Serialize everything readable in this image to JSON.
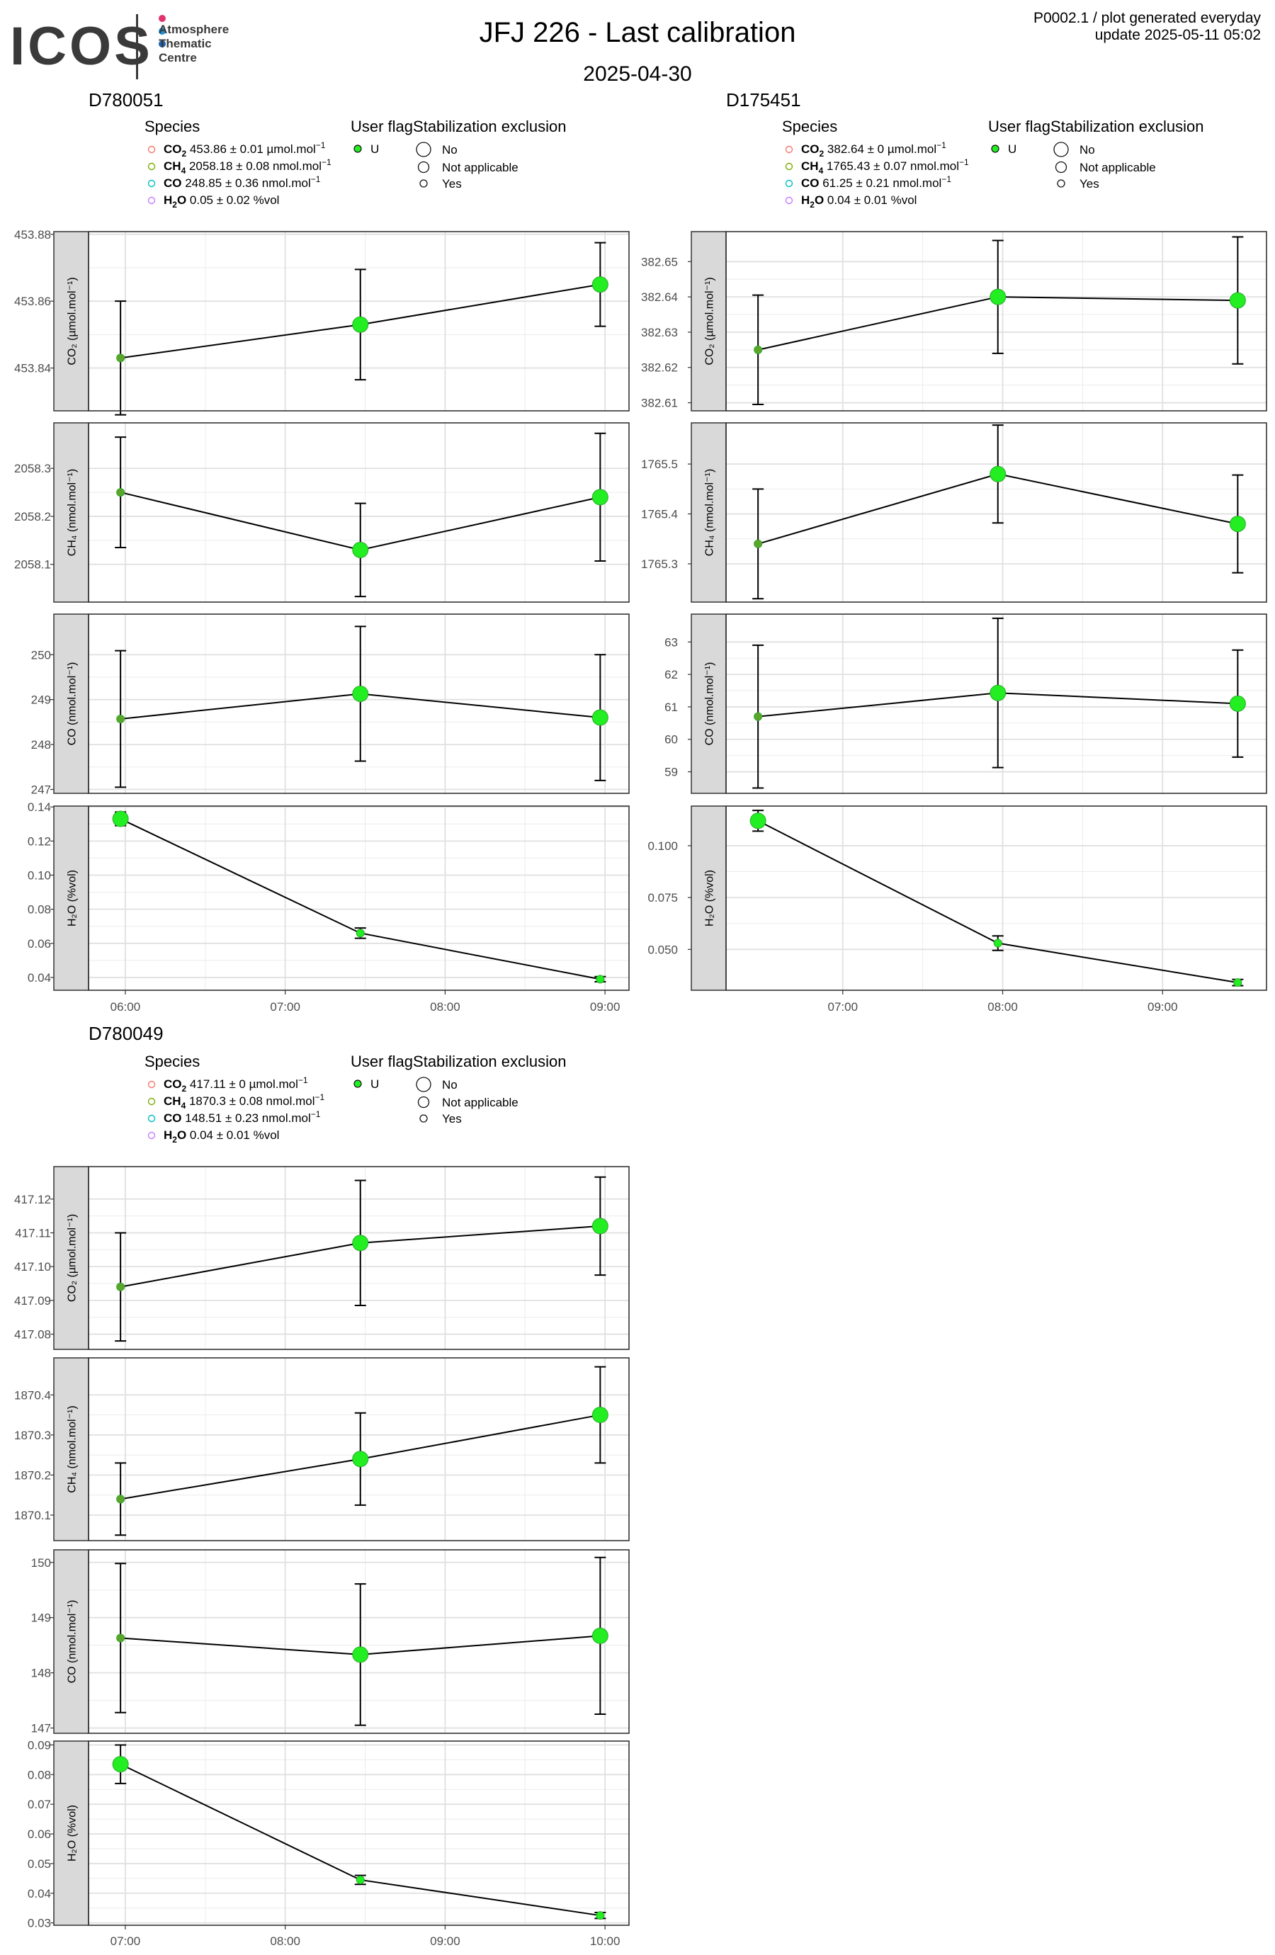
{
  "header": {
    "logo_text": "ICOS",
    "logo_subtitle": "Atmosphere\nThematic\nCentre",
    "logo_dot_colors": [
      "#e0336b",
      "#1a8fd6",
      "#1f5fb0"
    ],
    "title": "JFJ 226 - Last calibration",
    "date": "2025-04-30",
    "meta_line1": "P0002.1 / plot generated everyday",
    "meta_line2": "update  2025-05-11 05:02"
  },
  "legend_labels": {
    "species_title": "Species",
    "user_flag_title": "User flag",
    "stab_title": "Stabilization exclusion",
    "user_flag_value": "U",
    "stab_no": "No",
    "stab_na": "Not applicable",
    "stab_yes": "Yes"
  },
  "colors": {
    "point_fill": "#22ee22",
    "point_stroke": "#2aa82a",
    "early_point": "#5da52a",
    "grid": "#ebebeb",
    "strip": "#d9d9d9",
    "species_co2": "#f8766d",
    "species_ch4": "#7cae00",
    "species_co": "#00bfc4",
    "species_h2o": "#c77cff"
  },
  "chart_data": [
    {
      "type": "line",
      "title": "D780051",
      "x_ticks": [
        "06:00",
        "07:00",
        "08:00",
        "09:00"
      ],
      "x_range_hours": [
        5.77,
        9.15
      ],
      "x": [
        5.97,
        7.47,
        8.97
      ],
      "legend_species": [
        {
          "name": "CO",
          "sub": "2",
          "text": "453.86 ± 0.01 µmol.mol",
          "sup": "−1",
          "color": "#f8766d"
        },
        {
          "name": "CH",
          "sub": "4",
          "text": "2058.18 ± 0.08 nmol.mol",
          "sup": "−1",
          "color": "#7cae00"
        },
        {
          "name": "CO",
          "sub": "",
          "text": "248.85 ± 0.36 nmol.mol",
          "sup": "−1",
          "color": "#00bfc4"
        },
        {
          "name": "H",
          "sub": "2",
          "tail": "O",
          "text": "0.05 ± 0.02 %vol",
          "sup": "",
          "color": "#c77cff"
        }
      ],
      "panels": [
        {
          "species": "CO2",
          "ylabel": "CO₂ (µmol.mol⁻¹)",
          "ylim": [
            453.8272,
            453.8808
          ],
          "ticks": [
            453.84,
            453.86,
            453.88
          ],
          "tick_labels": [
            "453.84",
            "453.86",
            "453.88"
          ],
          "y": [
            453.843,
            453.853,
            453.865
          ],
          "err": [
            0.017,
            0.0165,
            0.0125
          ],
          "stab": [
            "Yes",
            "No",
            "No"
          ]
        },
        {
          "species": "CH4",
          "ylabel": "CH₄ (nmol.mol⁻¹)",
          "ylim": [
            2058.0213,
            2058.3948
          ],
          "ticks": [
            2058.1,
            2058.2,
            2058.3
          ],
          "tick_labels": [
            "2058.1",
            "2058.2",
            "2058.3"
          ],
          "y": [
            2058.25,
            2058.13,
            2058.24
          ],
          "err": [
            0.115,
            0.097,
            0.133
          ],
          "stab": [
            "Yes",
            "No",
            "No"
          ]
        },
        {
          "species": "CO",
          "ylabel": "CO (nmol.mol⁻¹)",
          "ylim": [
            246.9133,
            250.9035
          ],
          "ticks": [
            247,
            248,
            249,
            250
          ],
          "tick_labels": [
            "247",
            "248",
            "249",
            "250"
          ],
          "y": [
            248.57,
            249.13,
            248.6
          ],
          "err": [
            1.52,
            1.5,
            1.4
          ],
          "stab": [
            "Yes",
            "No",
            "No"
          ]
        },
        {
          "species": "H2O",
          "ylabel": "H₂O (%vol)",
          "ylim": [
            0.0325,
            0.1405
          ],
          "ticks": [
            0.04,
            0.06,
            0.08,
            0.1,
            0.12,
            0.14
          ],
          "tick_labels": [
            "0.04",
            "0.06",
            "0.08",
            "0.10",
            "0.12",
            "0.14"
          ],
          "y": [
            0.133,
            0.066,
            0.039
          ],
          "err": [
            0.004,
            0.003,
            0.0015
          ],
          "stab": [
            "No",
            "Yes",
            "Yes"
          ]
        }
      ]
    },
    {
      "type": "line",
      "title": "D175451",
      "x_ticks": [
        "07:00",
        "08:00",
        "09:00"
      ],
      "x_range_hours": [
        6.27,
        9.65
      ],
      "x": [
        6.47,
        7.97,
        9.47
      ],
      "legend_species": [
        {
          "name": "CO",
          "sub": "2",
          "text": "382.64 ± 0 µmol.mol",
          "sup": "−1",
          "color": "#f8766d"
        },
        {
          "name": "CH",
          "sub": "4",
          "text": "1765.43 ± 0.07 nmol.mol",
          "sup": "−1",
          "color": "#7cae00"
        },
        {
          "name": "CO",
          "sub": "",
          "text": "61.25 ± 0.21 nmol.mol",
          "sup": "−1",
          "color": "#00bfc4"
        },
        {
          "name": "H",
          "sub": "2",
          "tail": "O",
          "text": "0.04 ± 0.01 %vol",
          "sup": "",
          "color": "#c77cff"
        }
      ],
      "panels": [
        {
          "species": "CO2",
          "ylabel": "CO₂ (µmol.mol⁻¹)",
          "ylim": [
            382.6077,
            382.6585
          ],
          "ticks": [
            382.61,
            382.62,
            382.63,
            382.64,
            382.65
          ],
          "tick_labels": [
            "382.61",
            "382.62",
            "382.63",
            "382.64",
            "382.65"
          ],
          "y": [
            382.625,
            382.64,
            382.639
          ],
          "err": [
            0.0155,
            0.016,
            0.018
          ],
          "stab": [
            "Yes",
            "No",
            "No"
          ]
        },
        {
          "species": "CH4",
          "ylabel": "CH₄ (nmol.mol⁻¹)",
          "ylim": [
            1765.2233,
            1765.5825
          ],
          "ticks": [
            1765.3,
            1765.4,
            1765.5
          ],
          "tick_labels": [
            "1765.3",
            "1765.4",
            "1765.5"
          ],
          "y": [
            1765.34,
            1765.48,
            1765.38
          ],
          "err": [
            0.11,
            0.098,
            0.098
          ],
          "stab": [
            "Yes",
            "No",
            "No"
          ]
        },
        {
          "species": "CO",
          "ylabel": "CO (nmol.mol⁻¹)",
          "ylim": [
            58.335,
            63.8585
          ],
          "ticks": [
            59,
            60,
            61,
            62,
            63
          ],
          "tick_labels": [
            "59",
            "60",
            "61",
            "62",
            "63"
          ],
          "y": [
            60.7,
            61.43,
            61.1
          ],
          "err": [
            2.2,
            2.3,
            1.65
          ],
          "stab": [
            "Yes",
            "No",
            "No"
          ]
        },
        {
          "species": "H2O",
          "ylabel": "H₂O (%vol)",
          "ylim": [
            0.0303,
            0.1191
          ],
          "ticks": [
            0.05,
            0.075,
            0.1
          ],
          "tick_labels": [
            "0.050",
            "0.075",
            "0.100"
          ],
          "y": [
            0.112,
            0.053,
            0.034
          ],
          "err": [
            0.005,
            0.0035,
            0.0015
          ],
          "stab": [
            "No",
            "Yes",
            "Yes"
          ]
        }
      ]
    },
    {
      "type": "line",
      "title": "D780049",
      "x_ticks": [
        "07:00",
        "08:00",
        "09:00",
        "10:00"
      ],
      "x_range_hours": [
        6.77,
        10.15
      ],
      "x": [
        6.97,
        8.47,
        9.97
      ],
      "legend_species": [
        {
          "name": "CO",
          "sub": "2",
          "text": "417.11 ± 0 µmol.mol",
          "sup": "−1",
          "color": "#f8766d"
        },
        {
          "name": "CH",
          "sub": "4",
          "text": "1870.3 ± 0.08 nmol.mol",
          "sup": "−1",
          "color": "#7cae00"
        },
        {
          "name": "CO",
          "sub": "",
          "text": "148.51 ± 0.23 nmol.mol",
          "sup": "−1",
          "color": "#00bfc4"
        },
        {
          "name": "H",
          "sub": "2",
          "tail": "O",
          "text": "0.04 ± 0.01 %vol",
          "sup": "",
          "color": "#c77cff"
        }
      ],
      "panels": [
        {
          "species": "CO2",
          "ylabel": "CO₂ (µmol.mol⁻¹)",
          "ylim": [
            417.0755,
            417.1296
          ],
          "ticks": [
            417.08,
            417.09,
            417.1,
            417.11,
            417.12
          ],
          "tick_labels": [
            "417.08",
            "417.09",
            "417.10",
            "417.11",
            "417.12"
          ],
          "y": [
            417.094,
            417.107,
            417.112
          ],
          "err": [
            0.016,
            0.0185,
            0.0145
          ],
          "stab": [
            "Yes",
            "No",
            "No"
          ]
        },
        {
          "species": "CH4",
          "ylabel": "CH₄ (nmol.mol⁻¹)",
          "ylim": [
            1870.0363,
            1870.4924
          ],
          "ticks": [
            1870.1,
            1870.2,
            1870.3,
            1870.4
          ],
          "tick_labels": [
            "1870.1",
            "1870.2",
            "1870.3",
            "1870.4"
          ],
          "y": [
            1870.14,
            1870.24,
            1870.35
          ],
          "err": [
            0.09,
            0.115,
            0.12
          ],
          "stab": [
            "Yes",
            "No",
            "No"
          ]
        },
        {
          "species": "CO",
          "ylabel": "CO (nmol.mol⁻¹)",
          "ylim": [
            146.9043,
            150.2278
          ],
          "ticks": [
            147,
            148,
            149,
            150
          ],
          "tick_labels": [
            "147",
            "148",
            "149",
            "150"
          ],
          "y": [
            148.63,
            148.33,
            148.67
          ],
          "err": [
            1.35,
            1.28,
            1.42
          ],
          "stab": [
            "Yes",
            "No",
            "No"
          ]
        },
        {
          "species": "H2O",
          "ylabel": "H₂O (%vol)",
          "ylim": [
            0.0292,
            0.0913
          ],
          "ticks": [
            0.03,
            0.04,
            0.05,
            0.06,
            0.07,
            0.08,
            0.09
          ],
          "tick_labels": [
            "0.03",
            "0.04",
            "0.05",
            "0.06",
            "0.07",
            "0.08",
            "0.09"
          ],
          "y": [
            0.0835,
            0.0445,
            0.0325
          ],
          "err": [
            0.0065,
            0.0015,
            0.001
          ],
          "stab": [
            "No",
            "Yes",
            "Yes"
          ]
        }
      ]
    }
  ]
}
